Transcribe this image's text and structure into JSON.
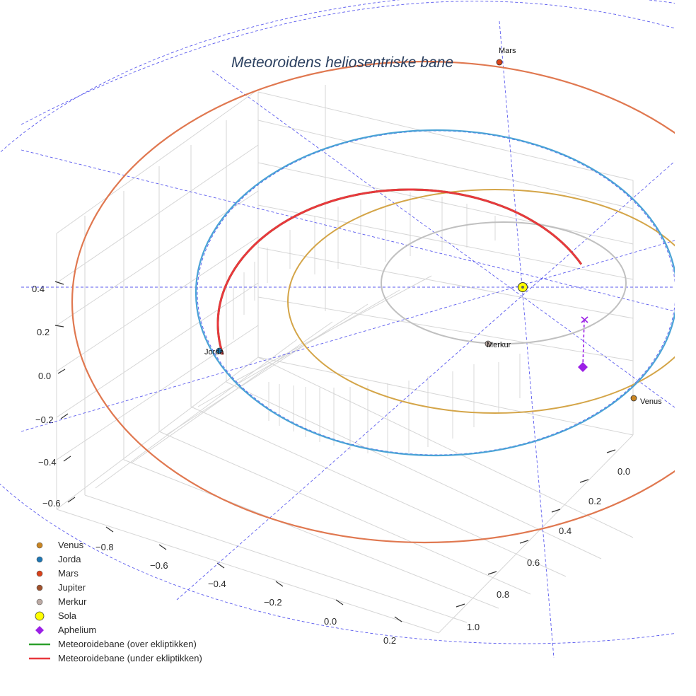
{
  "chart_data": {
    "type": "scatter3d",
    "title": "Meteoroidens heliosentriske bane",
    "axis_ticks": {
      "x": [
        "−0.8",
        "−0.6",
        "−0.4",
        "−0.2",
        "0.0",
        "0.2"
      ],
      "y": [
        "0.0",
        "0.2",
        "0.4",
        "0.6",
        "0.8",
        "1.0"
      ],
      "z": [
        "0.4",
        "0.2",
        "0.0",
        "−0.2",
        "−0.4",
        "−0.6"
      ]
    },
    "grid": true,
    "legend_position": "bottom-left",
    "bodies": [
      {
        "name": "Venus",
        "label": "Venus",
        "color": "#c98522"
      },
      {
        "name": "Jorda",
        "label": "Jorda",
        "color": "#1f77b4"
      },
      {
        "name": "Mars",
        "label": "Mars",
        "color": "#d9421a"
      },
      {
        "name": "Jupiter",
        "color": "#a0522d"
      },
      {
        "name": "Merkur",
        "label": "Merkur",
        "color": "#bcaaa4"
      },
      {
        "name": "Sola",
        "color": "#ffff00"
      },
      {
        "name": "Aphelium",
        "color": "#9b1fe6"
      }
    ],
    "orbits": [
      {
        "name": "Merkur",
        "color": "#c0c0c0"
      },
      {
        "name": "Venus",
        "color": "#d4a548"
      },
      {
        "name": "Jorda",
        "color": "#4aa3d6"
      },
      {
        "name": "Mars",
        "color": "#e07850"
      }
    ],
    "series": [
      {
        "name": "Meteoroidebane (over ekliptikken)",
        "color": "#2ca02c"
      },
      {
        "name": "Meteoroidebane (under ekliptikken)",
        "color": "#e8383d"
      }
    ],
    "legend": [
      {
        "label": "Venus",
        "symbol": "dot",
        "color": "#c98522"
      },
      {
        "label": "Jorda",
        "symbol": "dot",
        "color": "#1f77b4"
      },
      {
        "label": "Mars",
        "symbol": "dot",
        "color": "#d9421a"
      },
      {
        "label": "Jupiter",
        "symbol": "dot",
        "color": "#a0522d"
      },
      {
        "label": "Merkur",
        "symbol": "dot",
        "color": "#bcaaa4"
      },
      {
        "label": "Sola",
        "symbol": "bigdot",
        "color": "#ffff00"
      },
      {
        "label": "Aphelium",
        "symbol": "diamond",
        "color": "#9b1fe6"
      },
      {
        "label": "Meteoroidebane (over ekliptikken)",
        "symbol": "line",
        "color": "#2ca02c"
      },
      {
        "label": "Meteoroidebane (under ekliptikken)",
        "symbol": "line",
        "color": "#e8383d"
      }
    ]
  }
}
